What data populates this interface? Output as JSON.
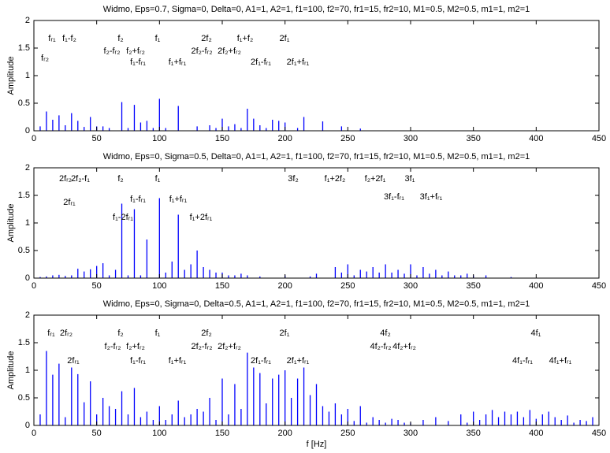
{
  "chart_data": [
    {
      "type": "stem",
      "title": "Widmo, Eps=0.7, Sigma=0, Delta=0, A1=1, A2=1, f1=100, f2=70, fr1=15, fr2=10, M1=0.5, M2=0.5, m1=1, m2=1",
      "ylabel": "Amplitude",
      "color": "#0000ff",
      "xlim": [
        0,
        450
      ],
      "ylim": [
        0,
        2
      ],
      "xticks": [
        0,
        50,
        100,
        150,
        200,
        250,
        300,
        350,
        400,
        450
      ],
      "yticks": [
        0,
        0.5,
        1,
        1.5,
        2
      ],
      "x": [
        5,
        10,
        15,
        20,
        25,
        30,
        35,
        40,
        45,
        50,
        55,
        60,
        70,
        75,
        80,
        85,
        90,
        95,
        100,
        105,
        115,
        130,
        140,
        145,
        150,
        155,
        160,
        165,
        170,
        175,
        180,
        185,
        190,
        195,
        200,
        210,
        215,
        230,
        245,
        260
      ],
      "values": [
        0.08,
        0.35,
        0.2,
        0.28,
        0.1,
        0.32,
        0.18,
        0.07,
        0.25,
        0.08,
        0.08,
        0.05,
        0.52,
        0.05,
        0.47,
        0.15,
        0.18,
        0.05,
        0.58,
        0.05,
        0.45,
        0.08,
        0.1,
        0.05,
        0.22,
        0.08,
        0.12,
        0.05,
        0.4,
        0.22,
        0.1,
        0.05,
        0.2,
        0.18,
        0.15,
        0.05,
        0.25,
        0.17,
        0.08,
        0.04
      ],
      "annotations": [
        "fᵣ₁",
        "f₁-f₂",
        "f₂",
        "f₁",
        "2f₂",
        "f₁+f₂",
        "2f₁",
        "f₂-fᵣ₂",
        "f₂+fᵣ₂",
        "2f₂-fᵣ₂",
        "2f₂+fᵣ₂",
        "fᵣ₂",
        "f₁-fᵣ₁",
        "f₁+fᵣ₁",
        "2f₁-fᵣ₁",
        "2f₁+fᵣ₁"
      ]
    },
    {
      "type": "stem",
      "title": "Widmo, Eps=0, Sigma=0.5, Delta=0, A1=1, A2=1, f1=100, f2=70, fr1=15, fr2=10, M1=0.5, M2=0.5, m1=1, m2=1",
      "ylabel": "Amplitude",
      "color": "#0000ff",
      "xlim": [
        0,
        450
      ],
      "ylim": [
        0,
        2
      ],
      "xticks": [
        0,
        50,
        100,
        150,
        200,
        250,
        300,
        350,
        400,
        450
      ],
      "yticks": [
        0,
        0.5,
        1,
        1.5,
        2
      ],
      "x": [
        5,
        10,
        15,
        20,
        25,
        30,
        35,
        40,
        45,
        50,
        55,
        60,
        65,
        70,
        75,
        80,
        85,
        90,
        100,
        105,
        110,
        115,
        120,
        125,
        130,
        135,
        140,
        145,
        150,
        155,
        160,
        165,
        170,
        180,
        200,
        220,
        225,
        240,
        245,
        250,
        255,
        260,
        265,
        270,
        275,
        280,
        285,
        290,
        295,
        300,
        305,
        310,
        315,
        320,
        325,
        330,
        335,
        340,
        345,
        350,
        360,
        380
      ],
      "values": [
        0.02,
        0.03,
        0.05,
        0.06,
        0.04,
        0.05,
        0.17,
        0.12,
        0.16,
        0.22,
        0.27,
        0.05,
        0.15,
        1.35,
        0.05,
        1.25,
        0.05,
        0.7,
        1.45,
        0.1,
        0.3,
        1.15,
        0.15,
        0.25,
        0.5,
        0.2,
        0.15,
        0.1,
        0.1,
        0.05,
        0.05,
        0.08,
        0.05,
        0.03,
        0.05,
        0.03,
        0.08,
        0.2,
        0.1,
        0.25,
        0.05,
        0.15,
        0.12,
        0.2,
        0.1,
        0.25,
        0.1,
        0.15,
        0.08,
        0.25,
        0.05,
        0.2,
        0.08,
        0.15,
        0.05,
        0.12,
        0.05,
        0.05,
        0.08,
        0.05,
        0.05,
        0.02
      ],
      "annotations": [
        "2fᵣ₂",
        "2f₂-f₁",
        "f₂",
        "f₁",
        "3f₂",
        "f₁+2f₂",
        "f₂+2f₁",
        "3f₁",
        "2fᵣ₁",
        "f₁-fᵣ₁",
        "f₁+fᵣ₁",
        "3f₁-fᵣ₁",
        "3f₁+fᵣ₁",
        "f₁-2fᵣ₁",
        "f₁+2fᵣ₁"
      ]
    },
    {
      "type": "stem",
      "title": "Widmo, Eps=0, Sigma=0, Delta=0.5, A1=1, A2=1, f1=100, f2=70, fr1=15, fr2=10, M1=0.5, M2=0.5, m1=1, m2=1",
      "ylabel": "Amplitude",
      "xlabel": "f [Hz]",
      "color": "#0000ff",
      "xlim": [
        0,
        450
      ],
      "ylim": [
        0,
        2
      ],
      "xticks": [
        0,
        50,
        100,
        150,
        200,
        250,
        300,
        350,
        400,
        450
      ],
      "yticks": [
        0,
        0.5,
        1,
        1.5,
        2
      ],
      "x": [
        5,
        10,
        15,
        20,
        25,
        30,
        35,
        40,
        45,
        50,
        55,
        60,
        65,
        70,
        75,
        80,
        85,
        90,
        95,
        100,
        105,
        110,
        115,
        120,
        125,
        130,
        135,
        140,
        145,
        150,
        155,
        160,
        165,
        170,
        175,
        180,
        185,
        190,
        195,
        200,
        205,
        210,
        215,
        220,
        225,
        230,
        235,
        240,
        245,
        250,
        255,
        260,
        265,
        270,
        275,
        280,
        285,
        290,
        295,
        300,
        310,
        320,
        330,
        340,
        345,
        350,
        355,
        360,
        365,
        370,
        375,
        380,
        385,
        390,
        395,
        400,
        405,
        410,
        415,
        420,
        425,
        430,
        435,
        440,
        445
      ],
      "values": [
        0.2,
        1.35,
        0.92,
        1.12,
        0.15,
        1.05,
        0.93,
        0.42,
        0.8,
        0.2,
        0.5,
        0.35,
        0.3,
        0.62,
        0.2,
        0.68,
        0.15,
        0.25,
        0.1,
        0.35,
        0.1,
        0.2,
        0.45,
        0.15,
        0.2,
        0.3,
        0.25,
        0.5,
        0.1,
        0.85,
        0.2,
        0.75,
        0.3,
        1.32,
        1.05,
        0.95,
        0.4,
        0.85,
        0.92,
        1.0,
        0.5,
        0.85,
        1.05,
        0.55,
        0.75,
        0.35,
        0.25,
        0.4,
        0.2,
        0.3,
        0.08,
        0.35,
        0.05,
        0.15,
        0.1,
        0.05,
        0.12,
        0.1,
        0.05,
        0.05,
        0.1,
        0.15,
        0.08,
        0.2,
        0.05,
        0.25,
        0.1,
        0.2,
        0.28,
        0.15,
        0.25,
        0.2,
        0.25,
        0.15,
        0.28,
        0.12,
        0.2,
        0.25,
        0.15,
        0.1,
        0.18,
        0.05,
        0.1,
        0.08,
        0.15
      ],
      "annotations": [
        "fᵣ₁",
        "2fᵣ₂",
        "f₂",
        "f₁",
        "2f₂",
        "2f₁",
        "4f₂",
        "4f₁",
        "f₂-fᵣ₂",
        "f₂+fᵣ₂",
        "2f₂-fᵣ₂",
        "2f₂+fᵣ₂",
        "4f₂-fᵣ₂",
        "4f₂+fᵣ₂",
        "2fᵣ₁",
        "f₁-fᵣ₁",
        "f₁+fᵣ₁",
        "2f₁-fᵣ₁",
        "2f₁+fᵣ₁",
        "4f₁-fᵣ₁",
        "4f₁+fᵣ₁"
      ]
    }
  ]
}
